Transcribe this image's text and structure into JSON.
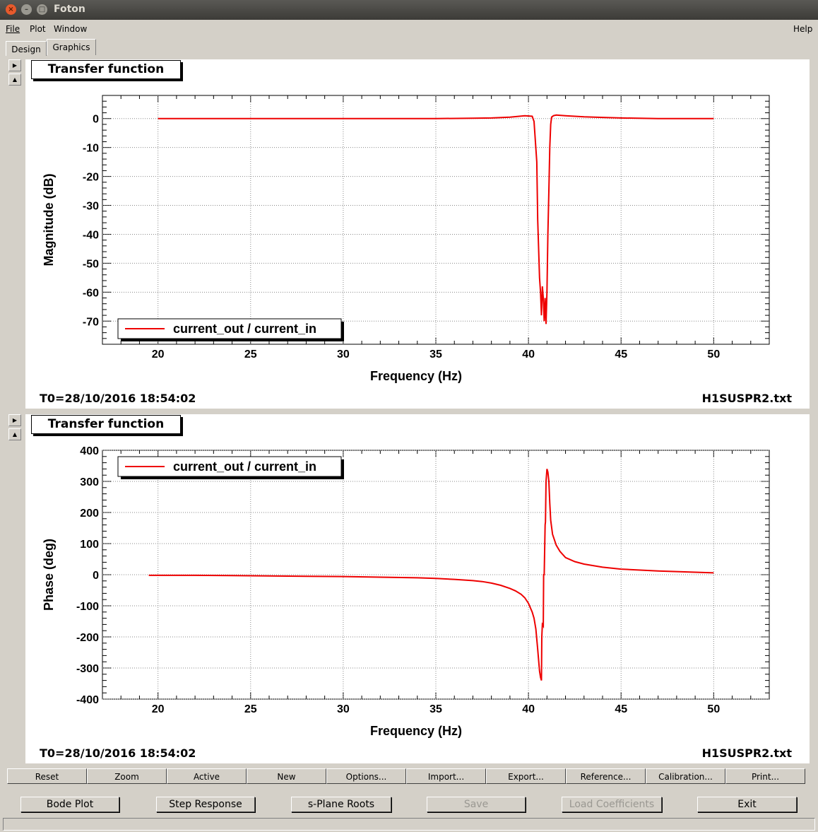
{
  "window": {
    "title": "Foton"
  },
  "menu": {
    "file": "File",
    "plot": "Plot",
    "window": "Window",
    "help": "Help"
  },
  "tabs": [
    {
      "label": "Design"
    },
    {
      "label": "Graphics"
    }
  ],
  "plots": [
    {
      "title": "Transfer function",
      "footer_left": "T0=28/10/2016 18:54:02",
      "footer_right": "H1SUSPR2.txt",
      "legend": "current_out / current_in",
      "color": "#ee0000",
      "chart_data": {
        "type": "line",
        "xlabel": "Frequency (Hz)",
        "ylabel": "Magnitude (dB)",
        "xlim": [
          17,
          53
        ],
        "ylim": [
          -78,
          8
        ],
        "xticks": [
          20,
          25,
          30,
          35,
          40,
          45,
          50
        ],
        "yticks": [
          0,
          -10,
          -20,
          -30,
          -40,
          -50,
          -60,
          -70
        ],
        "grid": true,
        "legend_position": "bottom-left",
        "series": [
          {
            "x": [
              20,
              25,
              30,
              35,
              37,
              38,
              39,
              39.8,
              40.2,
              40.3,
              40.45,
              40.5,
              40.6,
              40.65,
              40.7,
              40.75,
              40.8,
              40.85,
              40.9,
              40.95,
              41.0,
              41.05,
              41.1,
              41.15,
              41.2,
              41.25,
              41.35,
              41.5,
              42,
              43,
              44,
              45,
              47,
              50
            ],
            "y": [
              0,
              0,
              0,
              0,
              0.1,
              0.2,
              0.5,
              1.0,
              0.8,
              -1,
              -15,
              -35,
              -55,
              -60,
              -68,
              -58,
              -62,
              -70,
              -62,
              -71,
              -60,
              -40,
              -25,
              -10,
              -2,
              0.5,
              1.0,
              1.2,
              1.0,
              0.6,
              0.4,
              0.2,
              0,
              0
            ]
          }
        ]
      }
    },
    {
      "title": "Transfer function",
      "footer_left": "T0=28/10/2016 18:54:02",
      "footer_right": "H1SUSPR2.txt",
      "legend": "current_out / current_in",
      "color": "#ee0000",
      "chart_data": {
        "type": "line",
        "xlabel": "Frequency (Hz)",
        "ylabel": "Phase (deg)",
        "xlim": [
          17,
          53
        ],
        "ylim": [
          -400,
          400
        ],
        "xticks": [
          20,
          25,
          30,
          35,
          40,
          45,
          50
        ],
        "yticks": [
          400,
          300,
          200,
          100,
          0,
          -100,
          -200,
          -300,
          -400
        ],
        "grid": true,
        "legend_position": "top-left",
        "series": [
          {
            "x": [
              19.5,
              20,
              22,
              24,
              26,
              28,
              30,
              32,
              34,
              35,
              36,
              37,
              37.5,
              38,
              38.5,
              39,
              39.3,
              39.6,
              39.8,
              40.0,
              40.2,
              40.3,
              40.4,
              40.5,
              40.6,
              40.65,
              40.7,
              40.72,
              40.75,
              40.8,
              40.82,
              40.85,
              40.9,
              40.92,
              40.95,
              41.0,
              41.05,
              41.1,
              41.15,
              41.2,
              41.3,
              41.5,
              41.7,
              42,
              42.5,
              43,
              44,
              45,
              47,
              50
            ],
            "y": [
              -2,
              -2,
              -2,
              -3,
              -4,
              -5,
              -6,
              -8,
              -10,
              -12,
              -15,
              -19,
              -22,
              -27,
              -34,
              -44,
              -52,
              -63,
              -74,
              -92,
              -120,
              -140,
              -175,
              -240,
              -310,
              -330,
              -340,
              -200,
              -160,
              -165,
              0,
              0,
              160,
              170,
              300,
              340,
              330,
              300,
              230,
              175,
              130,
              95,
              75,
              55,
              42,
              34,
              24,
              18,
              12,
              6
            ]
          }
        ]
      }
    }
  ],
  "toolbar": [
    "Reset",
    "Zoom",
    "Active",
    "New",
    "Options...",
    "Import...",
    "Export...",
    "Reference...",
    "Calibration...",
    "Print..."
  ],
  "bottom_buttons": [
    {
      "label": "Bode Plot",
      "enabled": true
    },
    {
      "label": "Step Response",
      "enabled": true
    },
    {
      "label": "s-Plane Roots",
      "enabled": true
    },
    {
      "label": "Save",
      "enabled": false
    },
    {
      "label": "Load Coefficients",
      "enabled": false
    },
    {
      "label": "Exit",
      "enabled": true
    }
  ]
}
